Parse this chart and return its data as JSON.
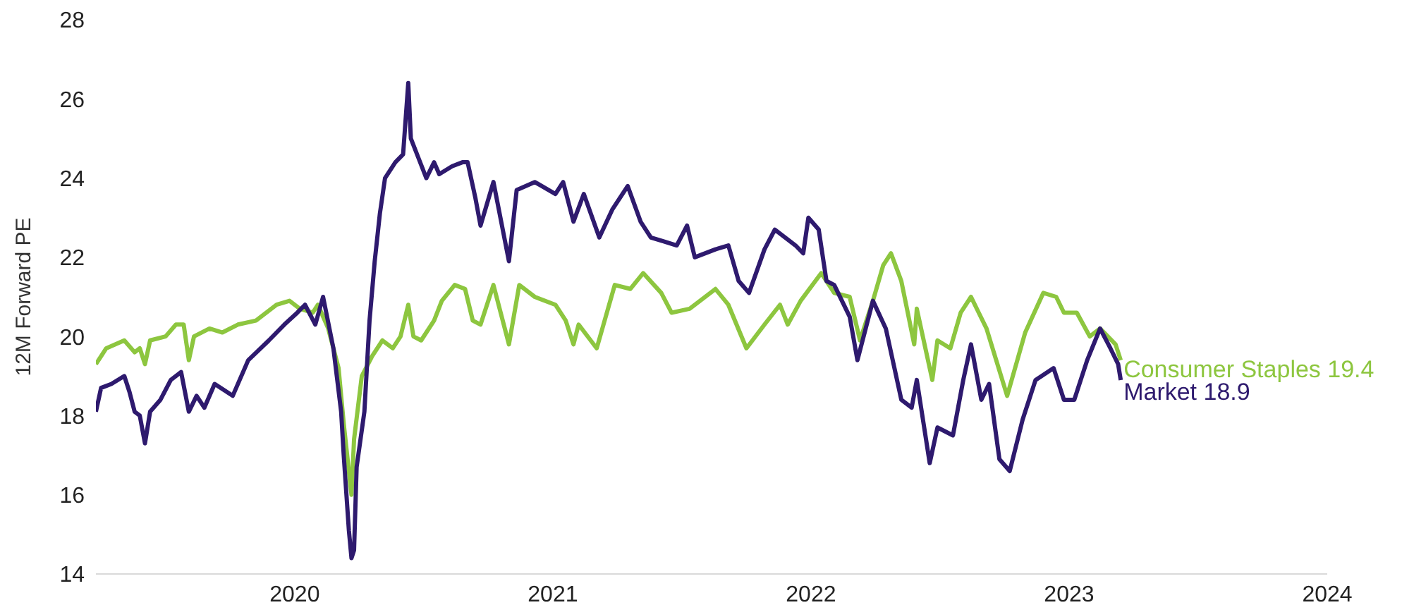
{
  "chart_data": {
    "type": "line",
    "ylabel": "12M Forward PE",
    "xlim": [
      2019.23,
      2024
    ],
    "xticks": [
      2020,
      2021,
      2022,
      2023,
      2024
    ],
    "ylim": [
      14,
      28
    ],
    "yticks": [
      14,
      16,
      18,
      20,
      22,
      24,
      26,
      28
    ],
    "grid": false,
    "series": [
      {
        "name": "Consumer Staples",
        "color": "#8dc63f",
        "x": [
          2019.23,
          2019.27,
          2019.34,
          2019.38,
          2019.4,
          2019.42,
          2019.44,
          2019.5,
          2019.54,
          2019.57,
          2019.59,
          2019.61,
          2019.67,
          2019.72,
          2019.78,
          2019.85,
          2019.93,
          2019.98,
          2020.02,
          2020.07,
          2020.09,
          2020.13,
          2020.17,
          2020.19,
          2020.22,
          2020.23,
          2020.26,
          2020.3,
          2020.34,
          2020.38,
          2020.41,
          2020.44,
          2020.46,
          2020.49,
          2020.54,
          2020.57,
          2020.62,
          2020.66,
          2020.69,
          2020.72,
          2020.77,
          2020.83,
          2020.87,
          2020.93,
          2021.01,
          2021.05,
          2021.08,
          2021.1,
          2021.17,
          2021.24,
          2021.3,
          2021.35,
          2021.42,
          2021.46,
          2021.53,
          2021.63,
          2021.68,
          2021.75,
          2021.82,
          2021.88,
          2021.91,
          2021.96,
          2022.04,
          2022.09,
          2022.15,
          2022.19,
          2022.24,
          2022.28,
          2022.31,
          2022.35,
          2022.4,
          2022.41,
          2022.47,
          2022.49,
          2022.54,
          2022.58,
          2022.62,
          2022.65,
          2022.68,
          2022.76,
          2022.83,
          2022.9,
          2022.95,
          2022.98,
          2023.03,
          2023.08,
          2023.12,
          2023.18,
          2023.2
        ],
        "values": [
          19.3,
          19.7,
          19.9,
          19.6,
          19.7,
          19.3,
          19.9,
          20.0,
          20.3,
          20.3,
          19.4,
          20.0,
          20.2,
          20.1,
          20.3,
          20.4,
          20.8,
          20.9,
          20.7,
          20.6,
          20.8,
          20.2,
          19.2,
          17.8,
          16.0,
          17.4,
          19.0,
          19.5,
          19.9,
          19.7,
          20.0,
          20.8,
          20.0,
          19.9,
          20.4,
          20.9,
          21.3,
          21.2,
          20.4,
          20.3,
          21.3,
          19.8,
          21.3,
          21.0,
          20.8,
          20.4,
          19.8,
          20.3,
          19.7,
          21.3,
          21.2,
          21.6,
          21.1,
          20.6,
          20.7,
          21.2,
          20.8,
          19.7,
          20.3,
          20.8,
          20.3,
          20.9,
          21.6,
          21.1,
          21.0,
          19.9,
          20.9,
          21.8,
          22.1,
          21.4,
          19.8,
          20.7,
          18.9,
          19.9,
          19.7,
          20.6,
          21.0,
          20.6,
          20.2,
          18.5,
          20.1,
          21.1,
          21.0,
          20.6,
          20.6,
          20.0,
          20.2,
          19.8,
          19.4
        ],
        "value_labels": [
          null,
          null,
          null,
          null,
          null,
          null,
          null,
          null,
          null,
          null,
          null,
          null,
          null,
          null,
          null,
          null,
          null,
          null,
          null,
          null,
          null,
          null,
          null,
          null,
          null,
          null,
          null,
          null,
          null,
          null,
          null,
          null,
          null,
          null,
          null,
          null,
          null,
          null,
          null,
          null,
          null,
          null,
          null,
          null,
          null,
          null,
          null,
          null,
          null,
          null,
          null,
          null,
          null,
          null,
          null,
          null,
          null,
          null,
          null,
          null,
          null,
          null,
          null,
          null,
          null,
          null,
          null,
          null,
          null,
          null,
          null,
          null,
          null,
          null,
          null,
          null,
          null,
          null,
          null,
          null,
          null,
          null,
          null,
          null,
          null,
          null,
          null,
          null,
          "19.4"
        ]
      },
      {
        "name": "Market",
        "color": "#2e1a6e",
        "x": [
          2019.23,
          2019.25,
          2019.29,
          2019.34,
          2019.36,
          2019.38,
          2019.4,
          2019.42,
          2019.44,
          2019.48,
          2019.52,
          2019.56,
          2019.59,
          2019.62,
          2019.65,
          2019.69,
          2019.76,
          2019.82,
          2019.9,
          2019.96,
          2020.01,
          2020.04,
          2020.08,
          2020.11,
          2020.15,
          2020.18,
          2020.19,
          2020.21,
          2020.22,
          2020.23,
          2020.24,
          2020.27,
          2020.29,
          2020.31,
          2020.33,
          2020.35,
          2020.39,
          2020.42,
          2020.44,
          2020.45,
          2020.48,
          2020.51,
          2020.54,
          2020.56,
          2020.61,
          2020.65,
          2020.67,
          2020.7,
          2020.72,
          2020.77,
          2020.83,
          2020.86,
          2020.93,
          2021.01,
          2021.04,
          2021.08,
          2021.12,
          2021.18,
          2021.23,
          2021.29,
          2021.34,
          2021.38,
          2021.43,
          2021.48,
          2021.52,
          2021.55,
          2021.63,
          2021.68,
          2021.72,
          2021.76,
          2021.82,
          2021.86,
          2021.94,
          2021.97,
          2021.99,
          2022.03,
          2022.06,
          2022.09,
          2022.15,
          2022.18,
          2022.24,
          2022.29,
          2022.35,
          2022.39,
          2022.41,
          2022.46,
          2022.49,
          2022.55,
          2022.59,
          2022.62,
          2022.66,
          2022.69,
          2022.73,
          2022.77,
          2022.82,
          2022.87,
          2022.94,
          2022.98,
          2023.02,
          2023.07,
          2023.12,
          2023.16,
          2023.19,
          2023.2
        ],
        "values": [
          18.1,
          18.7,
          18.8,
          19.0,
          18.6,
          18.1,
          18.0,
          17.3,
          18.1,
          18.4,
          18.9,
          19.1,
          18.1,
          18.5,
          18.2,
          18.8,
          18.5,
          19.4,
          19.9,
          20.3,
          20.6,
          20.8,
          20.3,
          21.0,
          19.7,
          18.1,
          17.0,
          15.1,
          14.4,
          14.6,
          16.7,
          18.1,
          20.4,
          21.9,
          23.1,
          24.0,
          24.4,
          24.6,
          26.4,
          25.0,
          24.5,
          24.0,
          24.4,
          24.1,
          24.3,
          24.4,
          24.4,
          23.5,
          22.8,
          23.9,
          21.9,
          23.7,
          23.9,
          23.6,
          23.9,
          22.9,
          23.6,
          22.5,
          23.2,
          23.8,
          22.9,
          22.5,
          22.4,
          22.3,
          22.8,
          22.0,
          22.2,
          22.3,
          21.4,
          21.1,
          22.2,
          22.7,
          22.3,
          22.1,
          23.0,
          22.7,
          21.4,
          21.3,
          20.5,
          19.4,
          20.9,
          20.2,
          18.4,
          18.2,
          18.9,
          16.8,
          17.7,
          17.5,
          18.9,
          19.8,
          18.4,
          18.8,
          16.9,
          16.6,
          17.9,
          18.9,
          19.2,
          18.4,
          18.4,
          19.4,
          20.2,
          19.7,
          19.3,
          18.9
        ],
        "value_labels": [
          null,
          null,
          null,
          null,
          null,
          null,
          null,
          null,
          null,
          null,
          null,
          null,
          null,
          null,
          null,
          null,
          null,
          null,
          null,
          null,
          null,
          null,
          null,
          null,
          null,
          null,
          null,
          null,
          null,
          null,
          null,
          null,
          null,
          null,
          null,
          null,
          null,
          null,
          null,
          null,
          null,
          null,
          null,
          null,
          null,
          null,
          null,
          null,
          null,
          null,
          null,
          null,
          null,
          null,
          null,
          null,
          null,
          null,
          null,
          null,
          null,
          null,
          null,
          null,
          null,
          null,
          null,
          null,
          null,
          null,
          null,
          null,
          null,
          null,
          null,
          null,
          null,
          null,
          null,
          null,
          null,
          null,
          null,
          null,
          null,
          null,
          null,
          null,
          null,
          null,
          null,
          null,
          null,
          null,
          null,
          null,
          null,
          null,
          null,
          null,
          null,
          null,
          null,
          "18.9"
        ]
      }
    ]
  }
}
